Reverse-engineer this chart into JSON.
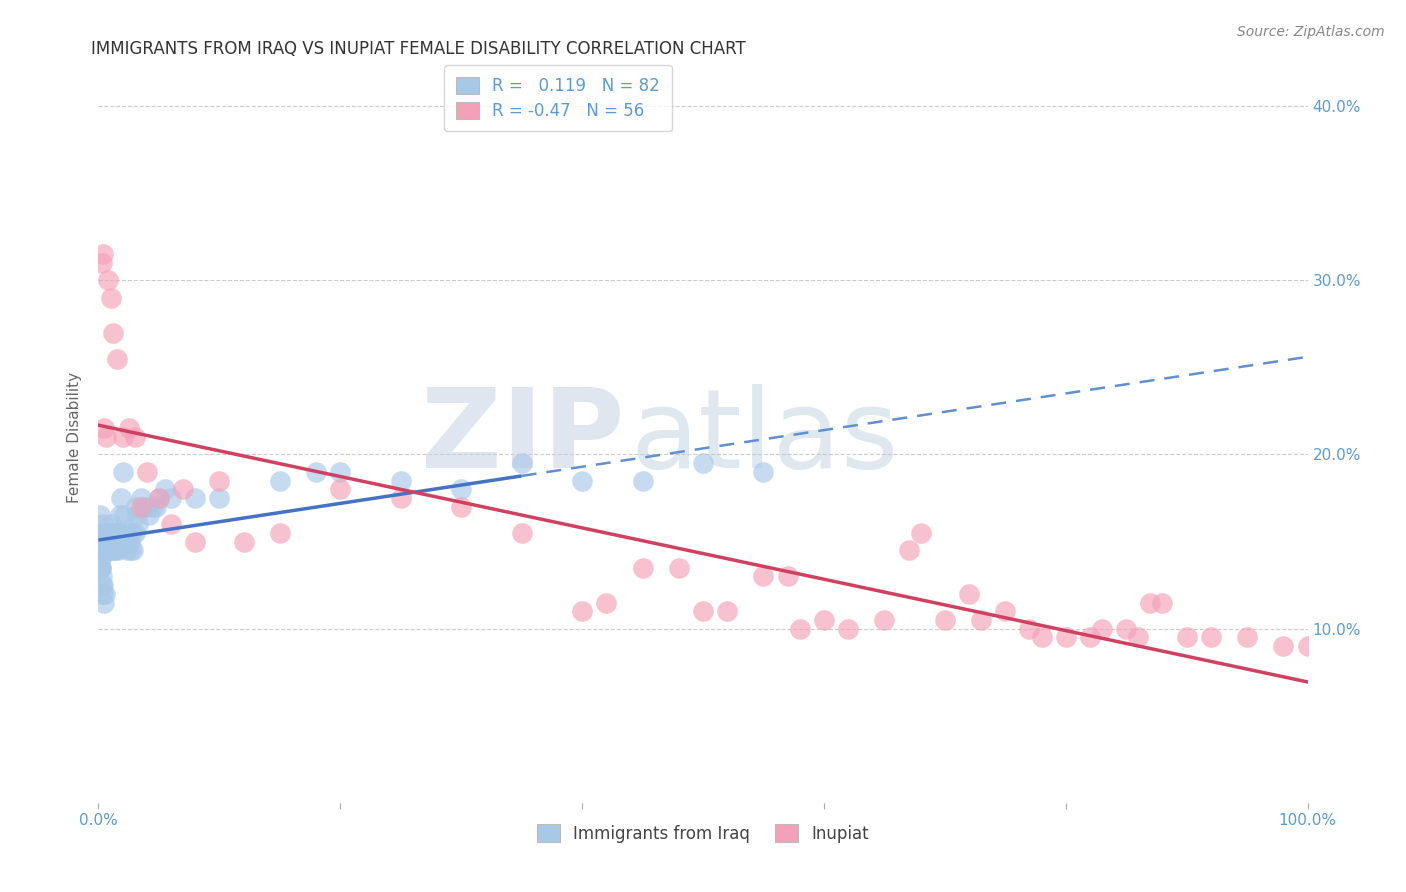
{
  "title": "IMMIGRANTS FROM IRAQ VS INUPIAT FEMALE DISABILITY CORRELATION CHART",
  "source": "Source: ZipAtlas.com",
  "ylabel": "Female Disability",
  "legend_label1": "Immigrants from Iraq",
  "legend_label2": "Inupiat",
  "R1": 0.119,
  "N1": 82,
  "R2": -0.47,
  "N2": 56,
  "color_blue": "#a8c8e8",
  "color_pink": "#f4a0b8",
  "color_blue_line": "#4472c4",
  "color_blue_dash": "#6090d0",
  "color_pink_line": "#d04060",
  "color_axis_labels": "#5b9bd5",
  "watermark_zip_color": "#c8d8ea",
  "watermark_atlas_color": "#a8c0d8",
  "background_color": "#ffffff",
  "grid_color": "#cccccc",
  "blue_x": [
    0.1,
    0.15,
    0.2,
    0.25,
    0.3,
    0.35,
    0.4,
    0.45,
    0.5,
    0.5,
    0.55,
    0.6,
    0.65,
    0.7,
    0.75,
    0.8,
    0.85,
    0.9,
    0.95,
    1.0,
    1.0,
    1.05,
    1.1,
    1.15,
    1.2,
    1.25,
    1.3,
    1.35,
    1.4,
    1.45,
    1.5,
    1.55,
    1.6,
    1.65,
    1.7,
    1.75,
    1.8,
    1.9,
    2.0,
    2.1,
    2.2,
    2.3,
    2.4,
    2.5,
    2.6,
    2.7,
    2.8,
    2.9,
    3.0,
    3.1,
    3.2,
    3.3,
    3.5,
    3.8,
    4.0,
    4.2,
    4.5,
    4.8,
    5.0,
    5.5,
    6.0,
    8.0,
    10.0,
    15.0,
    18.0,
    20.0,
    25.0,
    30.0,
    35.0,
    40.0,
    45.0,
    50.0,
    55.0,
    0.12,
    0.18,
    0.22,
    0.28,
    0.32,
    0.38,
    0.42,
    0.48,
    0.52
  ],
  "blue_y": [
    14.0,
    16.5,
    13.5,
    15.0,
    15.5,
    16.0,
    14.5,
    15.0,
    14.5,
    15.5,
    15.0,
    15.5,
    15.0,
    14.5,
    15.0,
    14.5,
    15.0,
    14.5,
    15.5,
    15.0,
    16.0,
    14.5,
    15.0,
    14.5,
    15.0,
    15.5,
    14.5,
    14.5,
    15.0,
    15.5,
    15.0,
    15.5,
    15.0,
    14.5,
    15.0,
    15.5,
    16.5,
    17.5,
    19.0,
    16.5,
    15.0,
    15.5,
    14.5,
    15.0,
    15.0,
    14.5,
    15.5,
    14.5,
    15.5,
    17.0,
    16.5,
    16.0,
    17.5,
    17.0,
    17.0,
    16.5,
    17.0,
    17.0,
    17.5,
    18.0,
    17.5,
    17.5,
    17.5,
    18.5,
    19.0,
    19.0,
    18.5,
    18.0,
    19.5,
    18.5,
    18.5,
    19.5,
    19.0,
    13.5,
    14.0,
    13.5,
    13.0,
    12.5,
    12.5,
    12.0,
    11.5,
    12.0
  ],
  "pink_x": [
    0.3,
    0.5,
    0.6,
    0.8,
    1.0,
    1.2,
    1.5,
    2.0,
    2.5,
    3.0,
    3.5,
    4.0,
    5.0,
    6.0,
    7.0,
    8.0,
    10.0,
    12.0,
    15.0,
    20.0,
    25.0,
    30.0,
    35.0,
    40.0,
    42.0,
    45.0,
    48.0,
    50.0,
    52.0,
    55.0,
    57.0,
    58.0,
    60.0,
    62.0,
    65.0,
    67.0,
    68.0,
    70.0,
    72.0,
    73.0,
    75.0,
    77.0,
    78.0,
    80.0,
    82.0,
    83.0,
    85.0,
    86.0,
    87.0,
    88.0,
    90.0,
    92.0,
    95.0,
    98.0,
    100.0,
    0.4
  ],
  "pink_y": [
    31.0,
    21.5,
    21.0,
    30.0,
    29.0,
    27.0,
    25.5,
    21.0,
    21.5,
    21.0,
    17.0,
    19.0,
    17.5,
    16.0,
    18.0,
    15.0,
    18.5,
    15.0,
    15.5,
    18.0,
    17.5,
    17.0,
    15.5,
    11.0,
    11.5,
    13.5,
    13.5,
    11.0,
    11.0,
    13.0,
    13.0,
    10.0,
    10.5,
    10.0,
    10.5,
    14.5,
    15.5,
    10.5,
    12.0,
    10.5,
    11.0,
    10.0,
    9.5,
    9.5,
    9.5,
    10.0,
    10.0,
    9.5,
    11.5,
    11.5,
    9.5,
    9.5,
    9.5,
    9.0,
    9.0,
    31.5
  ],
  "xmin": 0.0,
  "xmax": 100.0,
  "ymin": 0.0,
  "ymax": 42.0,
  "ytick_positions": [
    0,
    10,
    20,
    30,
    40
  ],
  "ytick_labels_right": [
    "",
    "10.0%",
    "20.0%",
    "30.0%",
    "40.0%"
  ],
  "xtick_positions": [
    0,
    20,
    40,
    60,
    80,
    100
  ],
  "blue_solid_xrange": [
    0.0,
    30.0
  ],
  "blue_dash_xrange": [
    30.0,
    100.0
  ],
  "pink_solid_xrange": [
    0.0,
    100.0
  ],
  "title_fontsize": 12,
  "axis_label_fontsize": 11,
  "legend_fontsize": 12,
  "source_fontsize": 10
}
